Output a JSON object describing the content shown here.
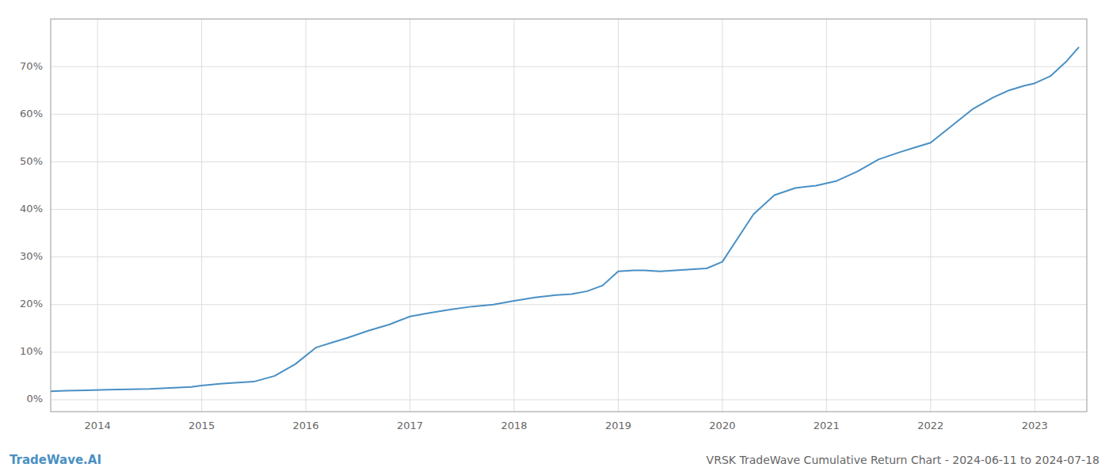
{
  "chart_data": {
    "type": "line",
    "title": "VRSK TradeWave Cumulative Return Chart - 2024-06-11 to 2024-07-18",
    "annotations": [
      "TradeWave.AI"
    ],
    "x": [
      2013.55,
      2013.7,
      2013.9,
      2014.1,
      2014.3,
      2014.5,
      2014.7,
      2014.9,
      2015.0,
      2015.1,
      2015.2,
      2015.35,
      2015.5,
      2015.7,
      2015.9,
      2016.1,
      2016.25,
      2016.4,
      2016.6,
      2016.8,
      2017.0,
      2017.2,
      2017.4,
      2017.6,
      2017.8,
      2018.0,
      2018.2,
      2018.4,
      2018.55,
      2018.7,
      2018.85,
      2019.0,
      2019.15,
      2019.25,
      2019.4,
      2019.55,
      2019.7,
      2019.85,
      2020.0,
      2020.15,
      2020.3,
      2020.5,
      2020.7,
      2020.9,
      2021.1,
      2021.3,
      2021.5,
      2021.7,
      2021.85,
      2022.0,
      2022.2,
      2022.4,
      2022.6,
      2022.75,
      2022.9,
      2023.0,
      2023.15,
      2023.3,
      2023.42
    ],
    "values": [
      0.018,
      0.019,
      0.02,
      0.021,
      0.022,
      0.023,
      0.025,
      0.027,
      0.03,
      0.032,
      0.034,
      0.036,
      0.038,
      0.05,
      0.075,
      0.11,
      0.12,
      0.13,
      0.145,
      0.158,
      0.175,
      0.183,
      0.19,
      0.196,
      0.2,
      0.208,
      0.215,
      0.22,
      0.222,
      0.228,
      0.24,
      0.27,
      0.272,
      0.272,
      0.27,
      0.272,
      0.274,
      0.276,
      0.29,
      0.34,
      0.39,
      0.43,
      0.445,
      0.45,
      0.46,
      0.48,
      0.505,
      0.52,
      0.53,
      0.54,
      0.575,
      0.61,
      0.635,
      0.65,
      0.66,
      0.665,
      0.68,
      0.71,
      0.74
    ],
    "color": "#4a90c4",
    "xlim": [
      2013.55,
      2023.5
    ],
    "xticks": [
      2014,
      2015,
      2016,
      2017,
      2018,
      2019,
      2020,
      2021,
      2022,
      2023
    ],
    "ylim": [
      -0.025,
      0.8
    ],
    "yticks": [
      {
        "value": 0.0,
        "label": "0%"
      },
      {
        "value": 0.1,
        "label": "10%"
      },
      {
        "value": 0.2,
        "label": "20%"
      },
      {
        "value": 0.3,
        "label": "30%"
      },
      {
        "value": 0.4,
        "label": "40%"
      },
      {
        "value": 0.5,
        "label": "50%"
      },
      {
        "value": 0.6,
        "label": "60%"
      },
      {
        "value": 0.7,
        "label": "70%"
      }
    ],
    "grid": true
  }
}
